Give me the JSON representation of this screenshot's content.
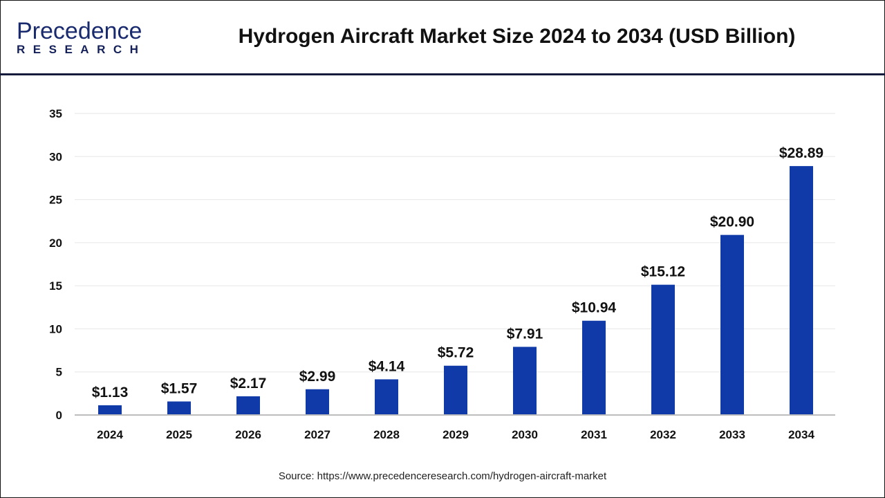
{
  "header": {
    "logo_text": "Precedence",
    "logo_subtext": "RESEARCH",
    "title": "Hydrogen Aircraft Market Size 2024 to 2034 (USD Billion)"
  },
  "colors": {
    "bar": "#0f3aa8",
    "header_rule": "#141a3c"
  },
  "chart_data": {
    "type": "bar",
    "title": "Hydrogen Aircraft Market Size 2024 to 2034 (USD Billion)",
    "categories": [
      "2024",
      "2025",
      "2026",
      "2027",
      "2028",
      "2029",
      "2030",
      "2031",
      "2032",
      "2033",
      "2034"
    ],
    "values": [
      1.13,
      1.57,
      2.17,
      2.99,
      4.14,
      5.72,
      7.91,
      10.94,
      15.12,
      20.9,
      28.89
    ],
    "data_labels": [
      "$1.13",
      "$1.57",
      "$2.17",
      "$2.99",
      "$4.14",
      "$5.72",
      "$7.91",
      "$10.94",
      "$15.12",
      "$20.90",
      "$28.89"
    ],
    "yticks": [
      0,
      5,
      10,
      15,
      20,
      25,
      30,
      35
    ],
    "ylim": [
      0,
      35
    ],
    "grid": true,
    "xlabel": "",
    "ylabel": ""
  },
  "footer": {
    "source": "Source: https://www.precedenceresearch.com/hydrogen-aircraft-market"
  }
}
